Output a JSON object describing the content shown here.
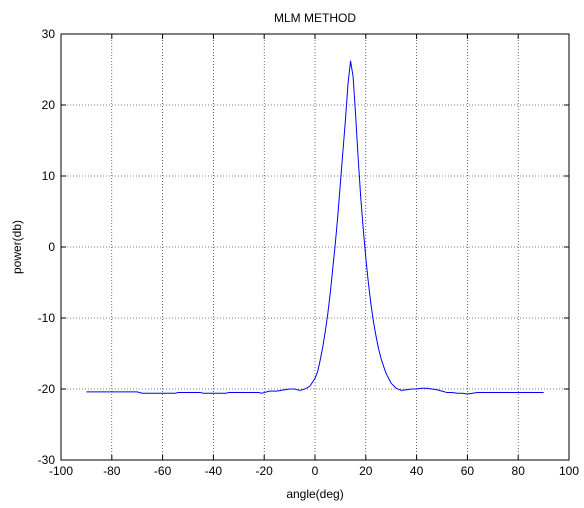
{
  "chart_data": {
    "type": "line",
    "title": "MLM METHOD",
    "xlabel": "angle(deg)",
    "ylabel": "power(db)",
    "xlim": [
      -100,
      100
    ],
    "ylim": [
      -30,
      30
    ],
    "xticks": [
      -100,
      -80,
      -60,
      -40,
      -20,
      0,
      20,
      40,
      60,
      80,
      100
    ],
    "yticks": [
      -30,
      -20,
      -10,
      0,
      10,
      20,
      30
    ],
    "xtick_labels": [
      "-100",
      "-80",
      "-60",
      "-40",
      "-20",
      "0",
      "20",
      "40",
      "60",
      "80",
      "100"
    ],
    "ytick_labels": [
      "-30",
      "-20",
      "-10",
      "0",
      "10",
      "20",
      "30"
    ],
    "grid": true,
    "legend": false,
    "series": [
      {
        "color": "#0000ff",
        "x": [
          -90,
          -70,
          -68,
          -55,
          -54,
          -45,
          -44,
          -35,
          -34,
          -22,
          -21,
          -20,
          -18,
          -15,
          -12,
          -10,
          -8,
          -6,
          -4,
          -2,
          0,
          1,
          2,
          3,
          4,
          5,
          6,
          7,
          8,
          9,
          10,
          11,
          12,
          13,
          14,
          15,
          16,
          17,
          18,
          19,
          20,
          21,
          22,
          23,
          24,
          25,
          26,
          27,
          28,
          30,
          32,
          34,
          36,
          38,
          40,
          42,
          44,
          46,
          48,
          50,
          52,
          54,
          56,
          58,
          60,
          62,
          64,
          66,
          70,
          80,
          90
        ],
        "y": [
          -20.4,
          -20.4,
          -20.6,
          -20.6,
          -20.5,
          -20.5,
          -20.6,
          -20.6,
          -20.5,
          -20.5,
          -20.6,
          -20.5,
          -20.3,
          -20.3,
          -20.1,
          -20.0,
          -20.0,
          -20.2,
          -20.0,
          -19.6,
          -18.5,
          -17.6,
          -16.0,
          -14.2,
          -12.0,
          -9.5,
          -6.5,
          -3.0,
          0.5,
          4.5,
          9.0,
          13.5,
          18.0,
          23.0,
          26.2,
          24.0,
          18.5,
          12.5,
          7.0,
          2.5,
          -1.5,
          -5.0,
          -8.0,
          -10.5,
          -12.5,
          -14.3,
          -15.7,
          -16.8,
          -17.8,
          -19.2,
          -19.9,
          -20.2,
          -20.1,
          -20.0,
          -20.0,
          -19.9,
          -19.9,
          -20.0,
          -20.1,
          -20.3,
          -20.5,
          -20.5,
          -20.6,
          -20.6,
          -20.7,
          -20.6,
          -20.5,
          -20.5,
          -20.5,
          -20.5,
          -20.5
        ]
      }
    ]
  }
}
